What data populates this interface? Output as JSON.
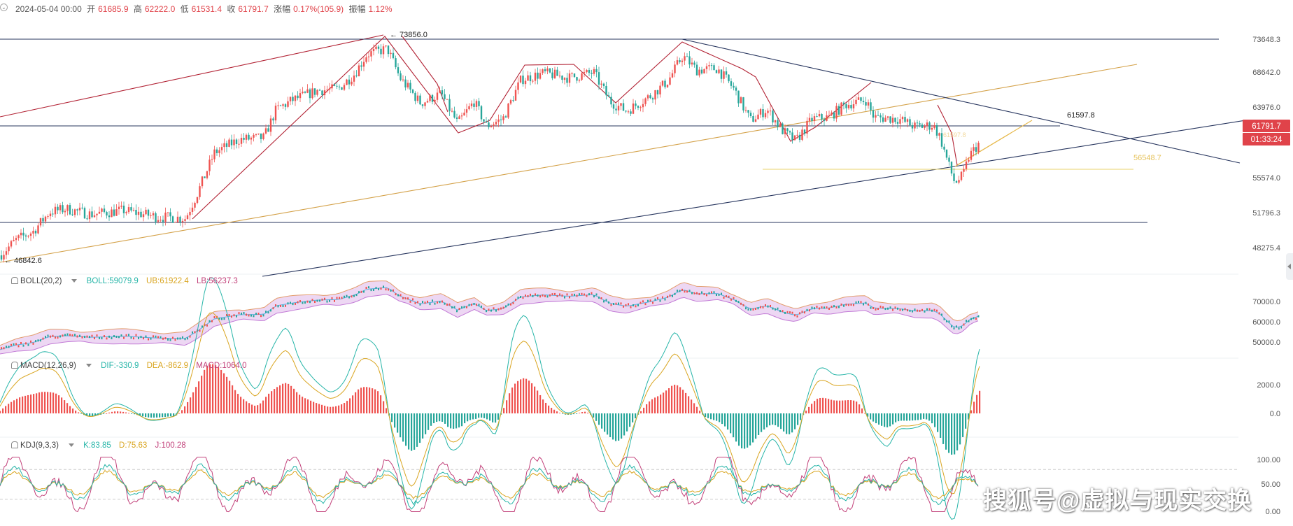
{
  "header": {
    "date": "2024-05-04 00:00",
    "open_label": "开",
    "open": "61685.9",
    "high_label": "高",
    "high": "62222.0",
    "low_label": "低",
    "low": "61531.4",
    "close_label": "收",
    "close": "61791.7",
    "change_label": "涨幅",
    "change": "0.17%(105.9)",
    "amp_label": "振幅",
    "amp": "1.12%"
  },
  "colors": {
    "up": "#ef5350",
    "down": "#26a69a",
    "red_line": "#b22234",
    "gold_line": "#d4a24a",
    "navy_line": "#27355e",
    "yellow": "#e9d36b"
  },
  "price_panel": {
    "axis_ticks": [
      "73648.3",
      "68642.0",
      "63976.0",
      "55574.0",
      "51796.3",
      "48275.4"
    ],
    "price_tag": "61791.7",
    "countdown": "01:33:24",
    "annotations": {
      "high": "73856.0",
      "low": "46842.6",
      "level1": "61597.8",
      "level2": "56548.7"
    }
  },
  "boll": {
    "name": "BOLL(20,2)",
    "values": [
      "BOLL:59079.9",
      "UB:61922.4",
      "LB:56237.3"
    ],
    "axis_ticks": [
      "70000.0",
      "60000.0",
      "50000.0"
    ]
  },
  "macd": {
    "name": "MACD(12,26,9)",
    "values": [
      "DIF:-330.9",
      "DEA:-862.9",
      "MACD:1064.0"
    ],
    "axis_ticks": [
      "2000.0",
      "0.0"
    ]
  },
  "kdj": {
    "name": "KDJ(9,3,3)",
    "values": [
      "K:83.85",
      "D:75.63",
      "J:100.28"
    ],
    "axis_ticks": [
      "100.00",
      "50.00",
      "0.00"
    ]
  },
  "chart_data": {
    "type": "candlestick",
    "instrument_price_range": [
      46842.6,
      73856.0
    ],
    "last": {
      "open": 61685.9,
      "high": 62222.0,
      "low": 61531.4,
      "close": 61791.7
    },
    "price_path": [
      [
        0,
        47500
      ],
      [
        20,
        49500
      ],
      [
        40,
        50500
      ],
      [
        60,
        53000
      ],
      [
        80,
        53400
      ],
      [
        110,
        52700
      ],
      [
        150,
        53200
      ],
      [
        190,
        52400
      ],
      [
        225,
        52200
      ],
      [
        240,
        55500
      ],
      [
        260,
        60500
      ],
      [
        290,
        62200
      ],
      [
        320,
        62400
      ],
      [
        335,
        66000
      ],
      [
        355,
        67200
      ],
      [
        385,
        68400
      ],
      [
        410,
        68600
      ],
      [
        430,
        70500
      ],
      [
        445,
        73000
      ],
      [
        470,
        73700
      ],
      [
        485,
        70000
      ],
      [
        510,
        66800
      ],
      [
        535,
        68000
      ],
      [
        555,
        64200
      ],
      [
        575,
        67000
      ],
      [
        590,
        63900
      ],
      [
        610,
        64800
      ],
      [
        632,
        69800
      ],
      [
        660,
        70600
      ],
      [
        690,
        70000
      ],
      [
        720,
        70700
      ],
      [
        740,
        67000
      ],
      [
        760,
        65800
      ],
      [
        790,
        67800
      ],
      [
        810,
        69600
      ],
      [
        828,
        72800
      ],
      [
        845,
        71000
      ],
      [
        870,
        71200
      ],
      [
        890,
        68600
      ],
      [
        910,
        64600
      ],
      [
        930,
        66000
      ],
      [
        950,
        63200
      ],
      [
        965,
        62000
      ],
      [
        985,
        64800
      ],
      [
        1005,
        65000
      ],
      [
        1025,
        66600
      ],
      [
        1050,
        67200
      ],
      [
        1060,
        65000
      ],
      [
        1090,
        64800
      ],
      [
        1110,
        63800
      ],
      [
        1132,
        64000
      ],
      [
        1140,
        62500
      ],
      [
        1152,
        58500
      ],
      [
        1158,
        56700
      ],
      [
        1168,
        57600
      ],
      [
        1175,
        60000
      ],
      [
        1182,
        61000
      ],
      [
        1188,
        61792
      ]
    ],
    "price_ticks": [
      73648.3,
      68642.0,
      63976.0,
      55574.0,
      51796.3,
      48275.4
    ],
    "boll": {
      "boll": 59079.9,
      "ub": 61922.4,
      "lb": 56237.3,
      "ticks": [
        70000,
        60000,
        50000
      ]
    },
    "macd": {
      "dif": -330.9,
      "dea": -862.9,
      "macd": 1064.0,
      "ticks": [
        2000,
        0
      ]
    },
    "kdj": {
      "k": 83.85,
      "d": 75.63,
      "j": 100.28,
      "ticks": [
        100,
        50,
        0
      ]
    }
  }
}
